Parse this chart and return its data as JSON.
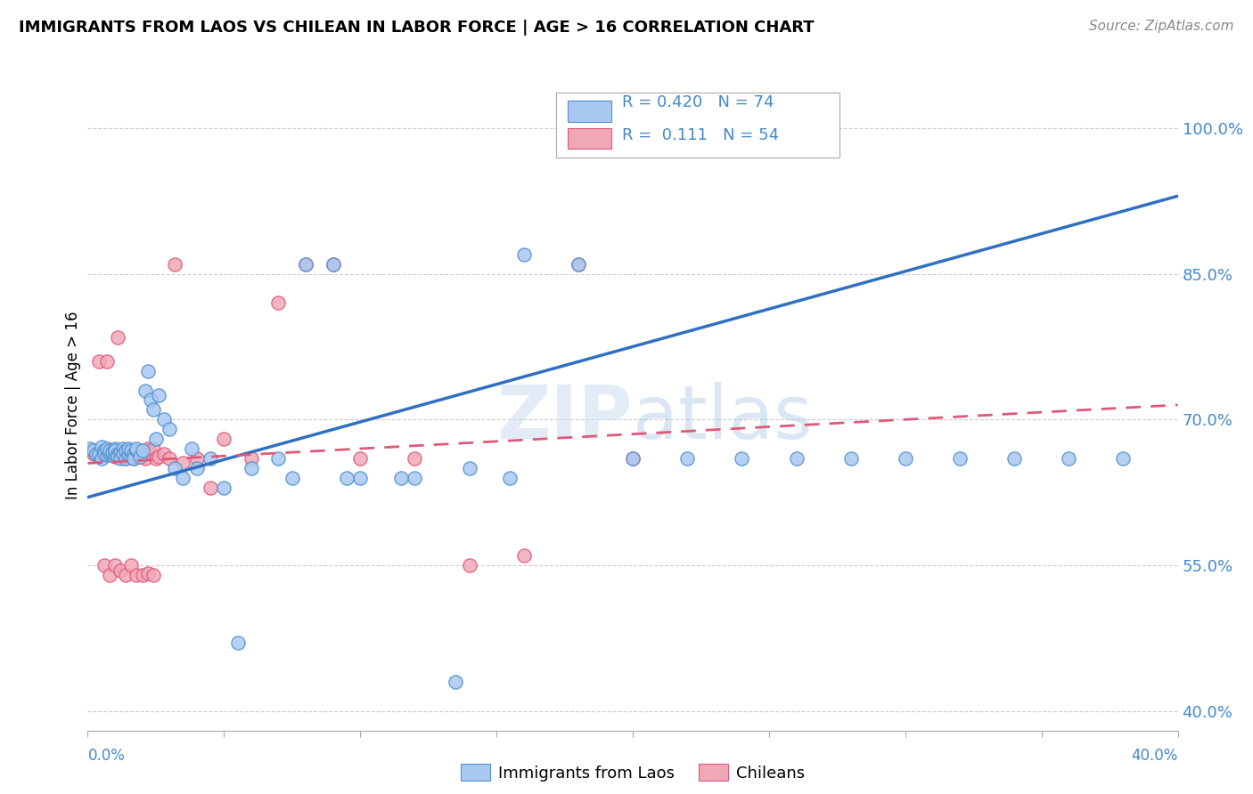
{
  "title": "IMMIGRANTS FROM LAOS VS CHILEAN IN LABOR FORCE | AGE > 16 CORRELATION CHART",
  "source": "Source: ZipAtlas.com",
  "ylabel": "In Labor Force | Age > 16",
  "yaxis_ticks": [
    "100.0%",
    "85.0%",
    "70.0%",
    "55.0%",
    "40.0%"
  ],
  "yaxis_values": [
    1.0,
    0.85,
    0.7,
    0.55,
    0.4
  ],
  "xlim": [
    0.0,
    0.4
  ],
  "ylim": [
    0.38,
    1.05
  ],
  "color_blue": "#a8c8f0",
  "color_pink": "#f0a8b8",
  "color_blue_edge": "#5090d0",
  "color_pink_edge": "#e05878",
  "color_blue_line": "#3070c0",
  "color_pink_line": "#e05878",
  "color_blue_text": "#4488cc",
  "grid_color": "#cccccc",
  "blue_scatter_x": [
    0.001,
    0.002,
    0.003,
    0.004,
    0.005,
    0.005,
    0.006,
    0.006,
    0.007,
    0.007,
    0.008,
    0.008,
    0.009,
    0.009,
    0.01,
    0.01,
    0.01,
    0.011,
    0.011,
    0.012,
    0.012,
    0.013,
    0.013,
    0.014,
    0.014,
    0.015,
    0.015,
    0.016,
    0.016,
    0.017,
    0.017,
    0.018,
    0.018,
    0.019,
    0.02,
    0.021,
    0.022,
    0.023,
    0.024,
    0.025,
    0.026,
    0.028,
    0.03,
    0.032,
    0.035,
    0.038,
    0.04,
    0.045,
    0.05,
    0.06,
    0.07,
    0.08,
    0.09,
    0.1,
    0.12,
    0.14,
    0.16,
    0.18,
    0.2,
    0.22,
    0.24,
    0.26,
    0.28,
    0.3,
    0.32,
    0.34,
    0.36,
    0.38,
    0.055,
    0.075,
    0.095,
    0.115,
    0.135,
    0.155
  ],
  "blue_scatter_y": [
    0.67,
    0.668,
    0.665,
    0.665,
    0.66,
    0.672,
    0.668,
    0.665,
    0.664,
    0.67,
    0.665,
    0.668,
    0.664,
    0.666,
    0.665,
    0.67,
    0.668,
    0.665,
    0.662,
    0.666,
    0.66,
    0.67,
    0.665,
    0.66,
    0.668,
    0.664,
    0.67,
    0.662,
    0.668,
    0.665,
    0.66,
    0.668,
    0.67,
    0.662,
    0.668,
    0.73,
    0.75,
    0.72,
    0.71,
    0.68,
    0.725,
    0.7,
    0.69,
    0.65,
    0.64,
    0.67,
    0.65,
    0.66,
    0.63,
    0.65,
    0.66,
    0.86,
    0.86,
    0.64,
    0.64,
    0.65,
    0.87,
    0.86,
    0.66,
    0.66,
    0.66,
    0.66,
    0.66,
    0.66,
    0.66,
    0.66,
    0.66,
    0.66,
    0.47,
    0.64,
    0.64,
    0.64,
    0.43,
    0.64
  ],
  "pink_scatter_x": [
    0.001,
    0.002,
    0.003,
    0.004,
    0.005,
    0.006,
    0.007,
    0.008,
    0.009,
    0.01,
    0.01,
    0.011,
    0.012,
    0.013,
    0.014,
    0.015,
    0.016,
    0.017,
    0.018,
    0.019,
    0.02,
    0.021,
    0.022,
    0.023,
    0.024,
    0.025,
    0.026,
    0.028,
    0.03,
    0.032,
    0.035,
    0.04,
    0.045,
    0.05,
    0.06,
    0.07,
    0.08,
    0.09,
    0.1,
    0.12,
    0.14,
    0.16,
    0.18,
    0.2,
    0.006,
    0.008,
    0.01,
    0.012,
    0.014,
    0.016,
    0.018,
    0.02,
    0.022,
    0.024
  ],
  "pink_scatter_y": [
    0.668,
    0.665,
    0.665,
    0.76,
    0.665,
    0.665,
    0.76,
    0.665,
    0.665,
    0.665,
    0.662,
    0.785,
    0.665,
    0.665,
    0.66,
    0.665,
    0.665,
    0.66,
    0.662,
    0.662,
    0.665,
    0.66,
    0.67,
    0.665,
    0.67,
    0.66,
    0.662,
    0.665,
    0.66,
    0.86,
    0.655,
    0.66,
    0.63,
    0.68,
    0.66,
    0.82,
    0.86,
    0.86,
    0.66,
    0.66,
    0.55,
    0.56,
    0.86,
    0.66,
    0.55,
    0.54,
    0.55,
    0.545,
    0.54,
    0.55,
    0.54,
    0.54,
    0.542,
    0.54
  ],
  "blue_line_x0": 0.0,
  "blue_line_y0": 0.62,
  "blue_line_x1": 0.4,
  "blue_line_y1": 0.93,
  "pink_line_x0": 0.0,
  "pink_line_y0": 0.655,
  "pink_line_x1": 0.4,
  "pink_line_y1": 0.715
}
